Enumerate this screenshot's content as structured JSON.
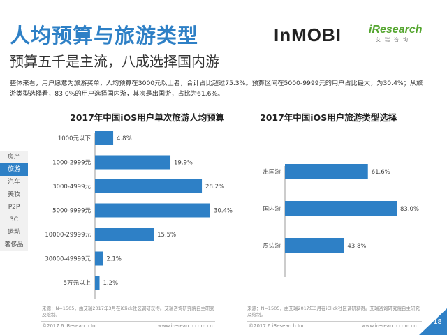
{
  "header": {
    "title": "人均预算与旅游类型",
    "subtitle": "预算五千是主流，八成选择国内游",
    "logo_inmobi": "InMOBI",
    "logo_iresearch": "iResearch",
    "logo_iresearch_cn": "艾瑞咨询"
  },
  "description": "整体来看，用户愿意为旅游买单，人均预算在3000元以上者，合计占比超过75.3%。预算区间在5000-9999元的用户占比最大，为30.4%；从旅游类型选择看，83.0%的用户选择国内游，其次是出国游，占比为61.6%。",
  "sidenav": {
    "items": [
      "房产",
      "旅游",
      "汽车",
      "美妆",
      "P2P",
      "3C",
      "运动",
      "奢侈品"
    ],
    "active": "旅游"
  },
  "chart_data": [
    {
      "type": "bar",
      "orientation": "horizontal",
      "title": "2017年中国iOS用户单次旅游人均预算",
      "categories": [
        "1000元以下",
        "1000-2999元",
        "3000-4999元",
        "5000-9999元",
        "10000-29999元",
        "30000-49999元",
        "5万元以上"
      ],
      "values": [
        4.8,
        19.9,
        28.2,
        30.4,
        15.5,
        2.1,
        1.2
      ],
      "labels": [
        "4.8%",
        "19.9%",
        "28.2%",
        "30.4%",
        "15.5%",
        "2.1%",
        "1.2%"
      ],
      "unit": "%",
      "xlim": [
        0,
        30.4
      ],
      "color": "#2e80c6"
    },
    {
      "type": "bar",
      "orientation": "horizontal",
      "title": "2017年中国iOS用户旅游类型选择",
      "categories": [
        "出国游",
        "国内游",
        "周边游"
      ],
      "values": [
        61.6,
        83.0,
        43.8
      ],
      "labels": [
        "61.6%",
        "83.0%",
        "43.8%"
      ],
      "unit": "%",
      "xlim": [
        0,
        83.0
      ],
      "color": "#2e80c6"
    }
  ],
  "footer": {
    "source_left": "来源：N=1505，由艾瑞2017年3月在iClick社区调研获得。艾瑞咨询研究院自主研究及绘制。",
    "source_right": "来源：N=1505，由艾瑞2017年3月在iClick社区调研获得。艾瑞咨询研究院自主研究及绘制。",
    "copyright_left": "©2017.6 iResearch Inc",
    "url_left": "www.iresearch.com.cn",
    "copyright_right": "©2017.6 iResearch Inc",
    "url_right": "www.iresearch.com.cn",
    "page_number": "18"
  },
  "colors": {
    "accent": "#2e80c6",
    "logo_green": "#55a630"
  }
}
